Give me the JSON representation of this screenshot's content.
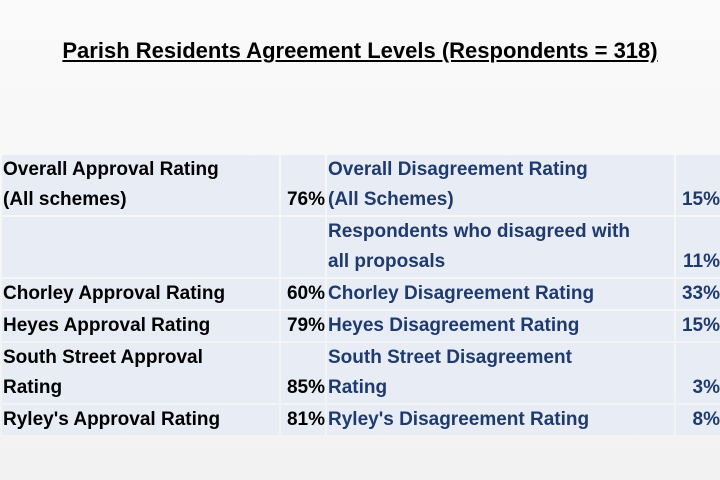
{
  "title": "Parish Residents Agreement Levels (Respondents = 318)",
  "rows": [
    {
      "approval_label": [
        "Overall Approval Rating",
        "(All schemes)"
      ],
      "approval_pct": "76%",
      "disagree_label": [
        "Overall Disagreement Rating",
        "(All Schemes)"
      ],
      "disagree_pct": "15%"
    },
    {
      "approval_label": [
        "",
        ""
      ],
      "approval_pct": "",
      "disagree_label": [
        "Respondents who disagreed with",
        "all proposals"
      ],
      "disagree_pct": "11%"
    },
    {
      "approval_label": [
        "Chorley Approval Rating"
      ],
      "approval_pct": "60%",
      "disagree_label": [
        "Chorley Disagreement Rating"
      ],
      "disagree_pct": "33%"
    },
    {
      "approval_label": [
        "Heyes Approval Rating"
      ],
      "approval_pct": "79%",
      "disagree_label": [
        "Heyes Disagreement Rating"
      ],
      "disagree_pct": "15%"
    },
    {
      "approval_label": [
        "South Street Approval",
        "Rating"
      ],
      "approval_pct": "85%",
      "disagree_label": [
        "South Street Disagreement",
        "Rating"
      ],
      "disagree_pct": "3%"
    },
    {
      "approval_label": [
        "Ryley's Approval Rating"
      ],
      "approval_pct": "81%",
      "disagree_label": [
        "Ryley's Disagreement Rating"
      ],
      "disagree_pct": "8%"
    }
  ]
}
